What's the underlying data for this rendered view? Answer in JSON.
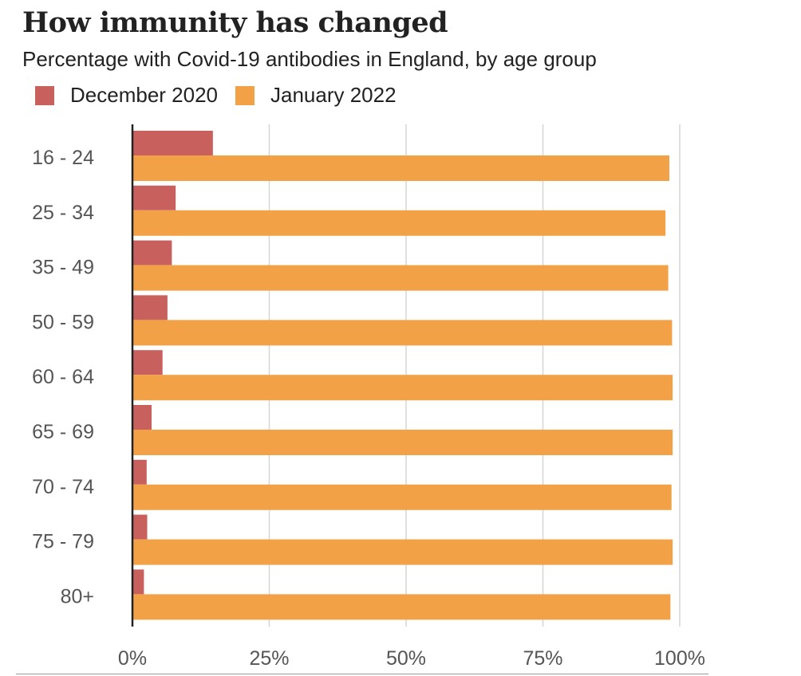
{
  "header": {
    "title": "How immunity has changed",
    "subtitle": "Percentage with Covid-19 antibodies in England, by age group"
  },
  "colors": {
    "dec2020": "#c8615e",
    "jan2022": "#f2a147",
    "grid": "#d6d6d6",
    "axis": "#222222",
    "text": "#222222",
    "tick_text": "#555555"
  },
  "chart_data": {
    "type": "bar",
    "orientation": "horizontal",
    "title": "How immunity has changed",
    "subtitle": "Percentage with Covid-19 antibodies in England, by age group",
    "categories": [
      "16 - 24",
      "25 - 34",
      "35 - 49",
      "50 - 59",
      "60 - 64",
      "65 - 69",
      "70 - 74",
      "75 - 79",
      "80+"
    ],
    "series": [
      {
        "name": "December 2020",
        "values": [
          14.7,
          7.9,
          7.2,
          6.4,
          5.5,
          3.5,
          2.6,
          2.7,
          2.1
        ]
      },
      {
        "name": "January 2022",
        "values": [
          98.1,
          97.4,
          97.9,
          98.6,
          98.7,
          98.7,
          98.5,
          98.7,
          98.3
        ]
      }
    ],
    "xlim": [
      0,
      100
    ],
    "xticks": [
      0,
      25,
      50,
      75,
      100
    ],
    "xtick_labels": [
      "0%",
      "25%",
      "50%",
      "75%",
      "100%"
    ],
    "grid": true,
    "legend_position": "top-left"
  }
}
